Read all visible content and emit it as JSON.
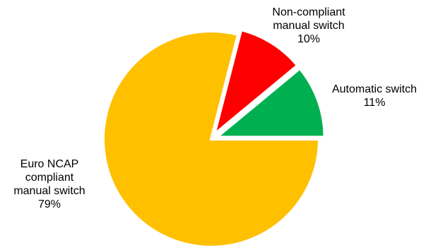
{
  "chart_data": {
    "type": "pie",
    "title": "",
    "start": "3 o'clock, counter-clockwise",
    "exploded": true,
    "slices": [
      {
        "label_lines": [
          "Automatic switch"
        ],
        "value_label": "11%",
        "value": 11,
        "color": "#00B050"
      },
      {
        "label_lines": [
          "Non-compliant",
          "manual switch"
        ],
        "value_label": "10%",
        "value": 10,
        "color": "#FF0000"
      },
      {
        "label_lines": [
          "Euro NCAP",
          "compliant",
          "manual switch"
        ],
        "value_label": "79%",
        "value": 79,
        "color": "#FFC000"
      }
    ]
  }
}
